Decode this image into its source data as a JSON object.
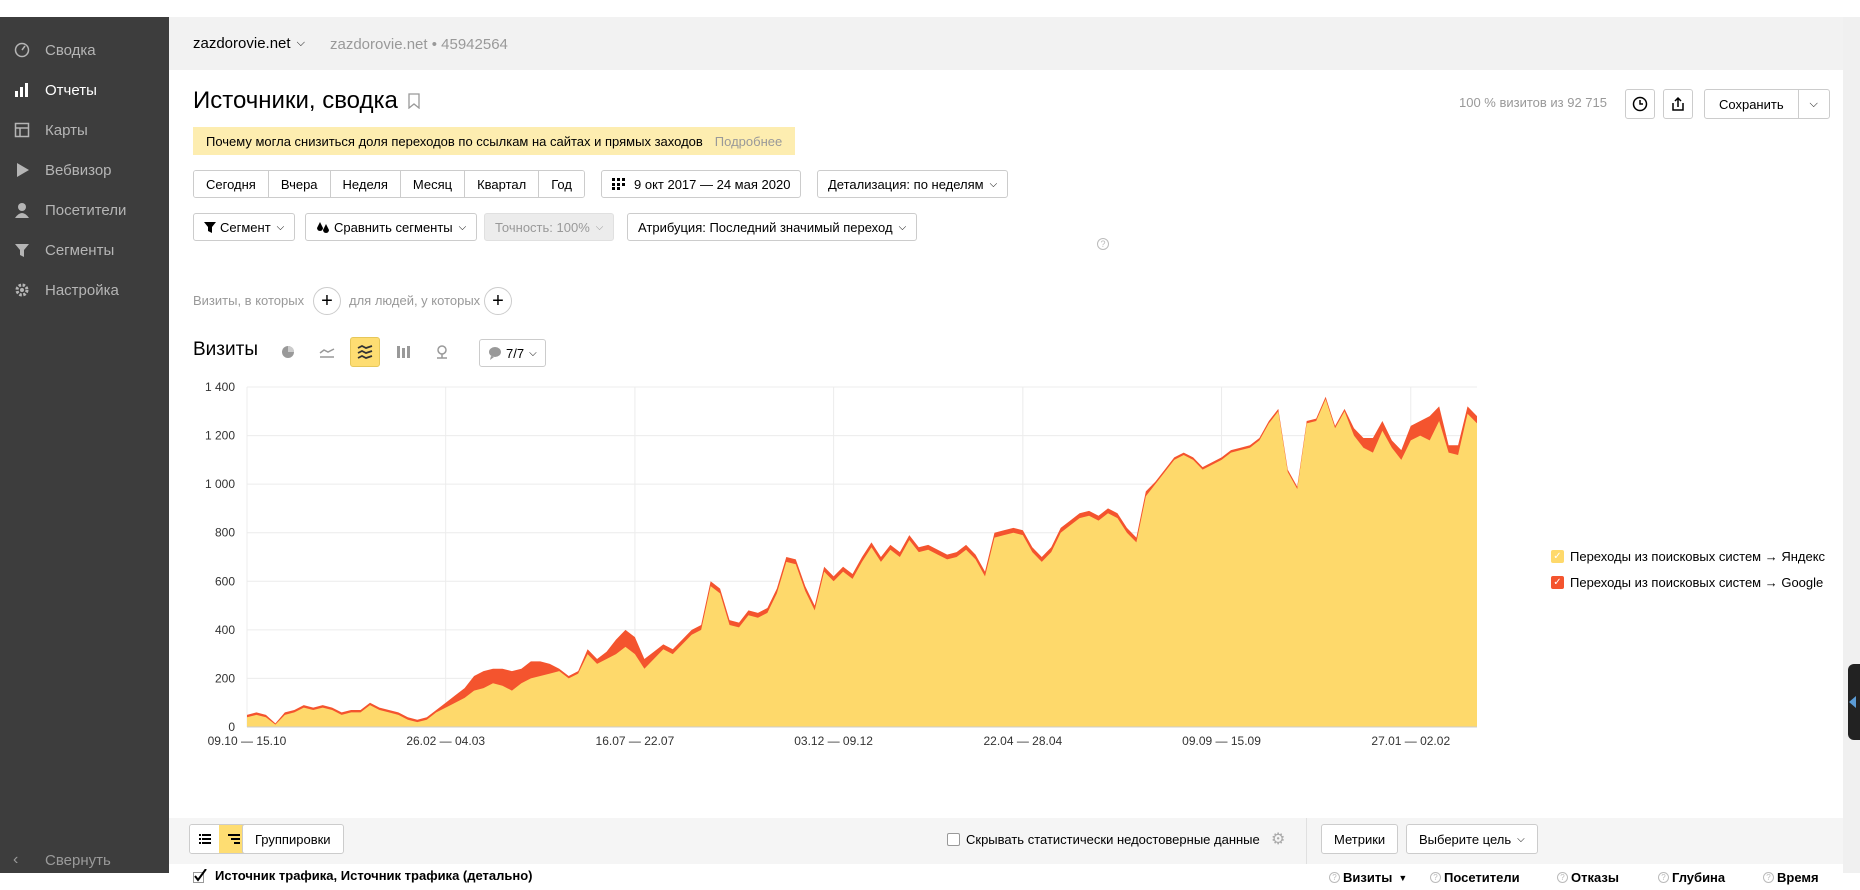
{
  "sidebar": {
    "items": [
      {
        "label": "Сводка",
        "icon": "dashboard-icon",
        "active": false
      },
      {
        "label": "Отчеты",
        "icon": "bar-chart-icon",
        "active": true
      },
      {
        "label": "Карты",
        "icon": "map-icon",
        "active": false
      },
      {
        "label": "Вебвизор",
        "icon": "play-icon",
        "active": false
      },
      {
        "label": "Посетители",
        "icon": "user-icon",
        "active": false
      },
      {
        "label": "Сегменты",
        "icon": "filter-icon",
        "active": false
      },
      {
        "label": "Настройка",
        "icon": "gear-icon",
        "active": false
      }
    ],
    "collapse_label": "Свернуть"
  },
  "header": {
    "site": "zazdorovie.net",
    "counter": "zazdorovie.net • 45942564",
    "title": "Источники, сводка",
    "visits_stat": "100 % визитов из 92 715",
    "save_label": "Сохранить"
  },
  "hint": {
    "text": "Почему могла снизиться доля переходов по ссылкам на сайтах и прямых заходов",
    "more": "Подробнее"
  },
  "periods": [
    "Сегодня",
    "Вчера",
    "Неделя",
    "Месяц",
    "Квартал",
    "Год"
  ],
  "date_range": "9 окт 2017 — 24 мая 2020",
  "detail": "Детализация: по неделям",
  "filters": {
    "segment": "Сегмент",
    "compare": "Сравнить сегменты",
    "accuracy": "Точность: 100%",
    "attribution": "Атрибуция: Последний значимый переход",
    "help": "?"
  },
  "conditions": {
    "visits_label": "Визиты, в которых",
    "people_label": "для людей, у которых"
  },
  "chart_header": {
    "title": "Визиты",
    "notes": "7/7"
  },
  "chart_data": {
    "type": "area",
    "title": "",
    "xlabel": "",
    "ylabel": "",
    "ylim": [
      0,
      1400
    ],
    "yticks": [
      "0",
      "200",
      "400",
      "600",
      "800",
      "1 000",
      "1 200",
      "1 400"
    ],
    "xticks": [
      "09.10 — 15.10",
      "26.02 — 04.03",
      "16.07 — 22.07",
      "03.12 — 09.12",
      "22.04 — 28.04",
      "09.09 — 15.09",
      "27.01 — 02.02"
    ],
    "stacked": true,
    "legend_position": "right",
    "grid": true,
    "series": [
      {
        "name": "Переходы из поисковых систем → Яндекс",
        "color": "#fed96b",
        "values": [
          40,
          50,
          40,
          10,
          50,
          60,
          80,
          70,
          80,
          70,
          50,
          60,
          60,
          90,
          70,
          60,
          50,
          30,
          20,
          30,
          60,
          80,
          100,
          120,
          150,
          160,
          180,
          170,
          150,
          180,
          200,
          210,
          220,
          230,
          200,
          220,
          300,
          260,
          280,
          300,
          330,
          300,
          240,
          280,
          320,
          300,
          340,
          380,
          400,
          580,
          550,
          420,
          410,
          460,
          450,
          470,
          550,
          680,
          670,
          560,
          480,
          640,
          600,
          640,
          610,
          680,
          740,
          680,
          730,
          700,
          770,
          720,
          730,
          710,
          690,
          700,
          730,
          690,
          620,
          780,
          790,
          800,
          790,
          720,
          680,
          720,
          800,
          830,
          860,
          870,
          850,
          880,
          860,
          800,
          760,
          950,
          1000,
          1050,
          1100,
          1120,
          1100,
          1060,
          1080,
          1100,
          1130,
          1140,
          1150,
          1180,
          1250,
          1300,
          1050,
          980,
          1250,
          1260,
          1350,
          1230,
          1300,
          1200,
          1150,
          1130,
          1220,
          1150,
          1100,
          1180,
          1200,
          1180,
          1260,
          1130,
          1120,
          1290,
          1250
        ]
      },
      {
        "name": "Переходы из поисковых систем → Google",
        "color": "#f4542e",
        "values": [
          10,
          10,
          10,
          5,
          10,
          10,
          10,
          10,
          10,
          10,
          10,
          10,
          10,
          10,
          10,
          10,
          10,
          10,
          10,
          10,
          10,
          20,
          30,
          40,
          60,
          70,
          60,
          70,
          80,
          60,
          70,
          60,
          40,
          10,
          10,
          10,
          20,
          20,
          30,
          60,
          70,
          70,
          40,
          30,
          20,
          20,
          20,
          20,
          20,
          20,
          20,
          20,
          20,
          20,
          20,
          20,
          20,
          20,
          20,
          20,
          20,
          20,
          20,
          20,
          20,
          20,
          20,
          20,
          20,
          20,
          20,
          20,
          20,
          20,
          20,
          20,
          20,
          20,
          20,
          20,
          20,
          20,
          20,
          20,
          20,
          20,
          20,
          20,
          20,
          20,
          20,
          20,
          20,
          20,
          20,
          20,
          10,
          10,
          10,
          10,
          10,
          10,
          10,
          10,
          10,
          10,
          10,
          10,
          10,
          10,
          10,
          10,
          10,
          10,
          10,
          10,
          10,
          30,
          40,
          60,
          40,
          30,
          40,
          60,
          60,
          100,
          60,
          30,
          40,
          30,
          30
        ]
      }
    ]
  },
  "legend": [
    {
      "label": "Переходы из поисковых систем → Яндекс",
      "color": "#fed96b"
    },
    {
      "label": "Переходы из поисковых систем → Google",
      "color": "#f4542e"
    }
  ],
  "bottom": {
    "groupings": "Группировки",
    "hide_unreliable": "Скрывать статистически недостоверные данные",
    "metrics": "Метрики",
    "choose_goal": "Выберите цель",
    "dimensions": "Источник трафика, Источник трафика (детально)",
    "columns": [
      "Визиты",
      "Посетители",
      "Отказы",
      "Глубина",
      "Время"
    ],
    "sort_mark": "▼"
  }
}
